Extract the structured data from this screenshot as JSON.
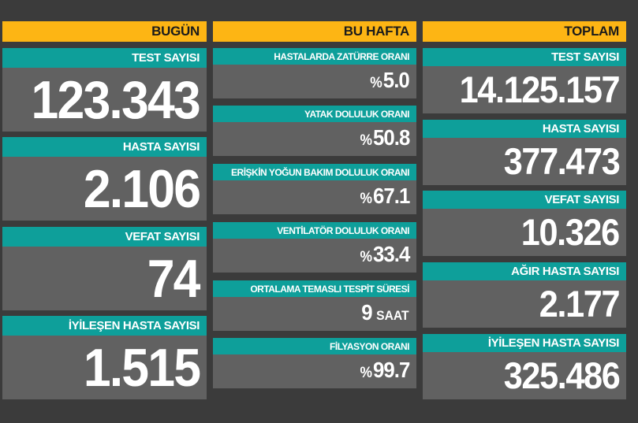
{
  "today": {
    "header": "BUGÜN",
    "cards": [
      {
        "label": "TEST SAYISI",
        "value": "123.343"
      },
      {
        "label": "HASTA SAYISI",
        "value": "2.106"
      },
      {
        "label": "VEFAT SAYISI",
        "value": "74"
      },
      {
        "label": "İYİLEŞEN HASTA SAYISI",
        "value": "1.515"
      }
    ]
  },
  "week": {
    "header": "BU HAFTA",
    "cards": [
      {
        "label": "HASTALARDA ZATÜRRE ORANI",
        "prefix": "%",
        "value": "5.0"
      },
      {
        "label": "YATAK DOLULUK ORANI",
        "prefix": "%",
        "value": "50.8"
      },
      {
        "label": "ERİŞKİN YOĞUN BAKIM DOLULUK ORANI",
        "prefix": "%",
        "value": "67.1"
      },
      {
        "label": "VENTİLATÖR DOLULUK ORANI",
        "prefix": "%",
        "value": "33.4"
      },
      {
        "label": "ORTALAMA TEMASLI TESPİT SÜRESİ",
        "value": "9",
        "unit": "SAAT"
      },
      {
        "label": "FİLYASYON ORANI",
        "prefix": "%",
        "value": "99.7"
      }
    ]
  },
  "total": {
    "header": "TOPLAM",
    "cards": [
      {
        "label": "TEST SAYISI",
        "value": "14.125.157"
      },
      {
        "label": "HASTA SAYISI",
        "value": "377.473"
      },
      {
        "label": "VEFAT SAYISI",
        "value": "10.326"
      },
      {
        "label": "AĞIR HASTA SAYISI",
        "value": "2.177"
      },
      {
        "label": "İYİLEŞEN HASTA SAYISI",
        "value": "325.486"
      }
    ]
  }
}
